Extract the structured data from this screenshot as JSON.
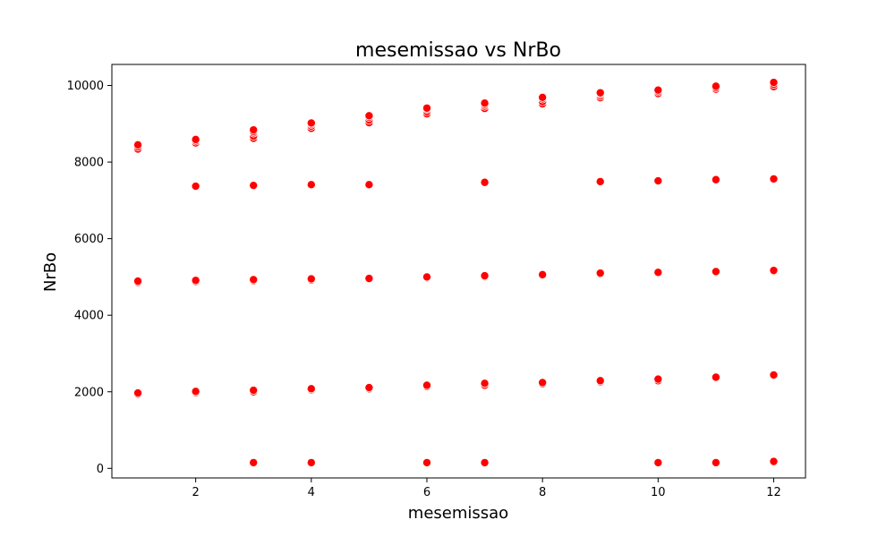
{
  "chart_data": {
    "type": "scatter",
    "title": "mesemissao vs NrBo",
    "xlabel": "mesemissao",
    "ylabel": "NrBo",
    "xlim": [
      0.55,
      12.55
    ],
    "ylim": [
      -250,
      10550
    ],
    "xticks": [
      2,
      4,
      6,
      8,
      10,
      12
    ],
    "yticks": [
      0,
      2000,
      4000,
      6000,
      8000,
      10000
    ],
    "grid": false,
    "marker_color": "#ff0000",
    "marker_edge_color": "#ffffff",
    "series": [
      {
        "points": [
          {
            "x": 1,
            "y": 8340
          },
          {
            "x": 1,
            "y": 8400
          },
          {
            "x": 1,
            "y": 8450
          },
          {
            "x": 2,
            "y": 8500
          },
          {
            "x": 2,
            "y": 8550
          },
          {
            "x": 2,
            "y": 8590
          },
          {
            "x": 3,
            "y": 8620
          },
          {
            "x": 3,
            "y": 8680
          },
          {
            "x": 3,
            "y": 8760
          },
          {
            "x": 3,
            "y": 8800
          },
          {
            "x": 3,
            "y": 8840
          },
          {
            "x": 4,
            "y": 8880
          },
          {
            "x": 4,
            "y": 8940
          },
          {
            "x": 4,
            "y": 8990
          },
          {
            "x": 4,
            "y": 9020
          },
          {
            "x": 5,
            "y": 9030
          },
          {
            "x": 5,
            "y": 9100
          },
          {
            "x": 5,
            "y": 9170
          },
          {
            "x": 5,
            "y": 9210
          },
          {
            "x": 6,
            "y": 9260
          },
          {
            "x": 6,
            "y": 9320
          },
          {
            "x": 6,
            "y": 9380
          },
          {
            "x": 6,
            "y": 9410
          },
          {
            "x": 7,
            "y": 9400
          },
          {
            "x": 7,
            "y": 9460
          },
          {
            "x": 7,
            "y": 9500
          },
          {
            "x": 7,
            "y": 9540
          },
          {
            "x": 8,
            "y": 9520
          },
          {
            "x": 8,
            "y": 9580
          },
          {
            "x": 8,
            "y": 9650
          },
          {
            "x": 8,
            "y": 9690
          },
          {
            "x": 9,
            "y": 9680
          },
          {
            "x": 9,
            "y": 9730
          },
          {
            "x": 9,
            "y": 9780
          },
          {
            "x": 9,
            "y": 9810
          },
          {
            "x": 10,
            "y": 9790
          },
          {
            "x": 10,
            "y": 9840
          },
          {
            "x": 10,
            "y": 9880
          },
          {
            "x": 11,
            "y": 9900
          },
          {
            "x": 11,
            "y": 9940
          },
          {
            "x": 11,
            "y": 9980
          },
          {
            "x": 12,
            "y": 9970
          },
          {
            "x": 12,
            "y": 10030
          },
          {
            "x": 12,
            "y": 10080
          },
          {
            "x": 2,
            "y": 7370
          },
          {
            "x": 3,
            "y": 7390
          },
          {
            "x": 4,
            "y": 7410
          },
          {
            "x": 5,
            "y": 7410
          },
          {
            "x": 7,
            "y": 7470
          },
          {
            "x": 9,
            "y": 7490
          },
          {
            "x": 10,
            "y": 7510
          },
          {
            "x": 11,
            "y": 7540
          },
          {
            "x": 12,
            "y": 7560
          },
          {
            "x": 1,
            "y": 4860
          },
          {
            "x": 1,
            "y": 4890
          },
          {
            "x": 2,
            "y": 4880
          },
          {
            "x": 2,
            "y": 4910
          },
          {
            "x": 3,
            "y": 4900
          },
          {
            "x": 3,
            "y": 4930
          },
          {
            "x": 4,
            "y": 4920
          },
          {
            "x": 4,
            "y": 4950
          },
          {
            "x": 5,
            "y": 4950
          },
          {
            "x": 5,
            "y": 4960
          },
          {
            "x": 6,
            "y": 4980
          },
          {
            "x": 6,
            "y": 5000
          },
          {
            "x": 7,
            "y": 5010
          },
          {
            "x": 7,
            "y": 5030
          },
          {
            "x": 8,
            "y": 5040
          },
          {
            "x": 8,
            "y": 5060
          },
          {
            "x": 9,
            "y": 5080
          },
          {
            "x": 9,
            "y": 5100
          },
          {
            "x": 10,
            "y": 5100
          },
          {
            "x": 10,
            "y": 5120
          },
          {
            "x": 11,
            "y": 5120
          },
          {
            "x": 11,
            "y": 5140
          },
          {
            "x": 12,
            "y": 5150
          },
          {
            "x": 12,
            "y": 5170
          },
          {
            "x": 1,
            "y": 1940
          },
          {
            "x": 1,
            "y": 1970
          },
          {
            "x": 2,
            "y": 1980
          },
          {
            "x": 2,
            "y": 2010
          },
          {
            "x": 3,
            "y": 2000
          },
          {
            "x": 3,
            "y": 2040
          },
          {
            "x": 4,
            "y": 2050
          },
          {
            "x": 4,
            "y": 2080
          },
          {
            "x": 5,
            "y": 2080
          },
          {
            "x": 5,
            "y": 2110
          },
          {
            "x": 6,
            "y": 2140
          },
          {
            "x": 6,
            "y": 2170
          },
          {
            "x": 7,
            "y": 2170
          },
          {
            "x": 7,
            "y": 2220
          },
          {
            "x": 8,
            "y": 2210
          },
          {
            "x": 8,
            "y": 2240
          },
          {
            "x": 9,
            "y": 2260
          },
          {
            "x": 9,
            "y": 2290
          },
          {
            "x": 10,
            "y": 2290
          },
          {
            "x": 10,
            "y": 2330
          },
          {
            "x": 11,
            "y": 2370
          },
          {
            "x": 11,
            "y": 2380
          },
          {
            "x": 12,
            "y": 2420
          },
          {
            "x": 12,
            "y": 2440
          },
          {
            "x": 3,
            "y": 150
          },
          {
            "x": 4,
            "y": 150
          },
          {
            "x": 6,
            "y": 150
          },
          {
            "x": 7,
            "y": 150
          },
          {
            "x": 10,
            "y": 150
          },
          {
            "x": 11,
            "y": 150
          },
          {
            "x": 12,
            "y": 180
          }
        ]
      }
    ]
  }
}
